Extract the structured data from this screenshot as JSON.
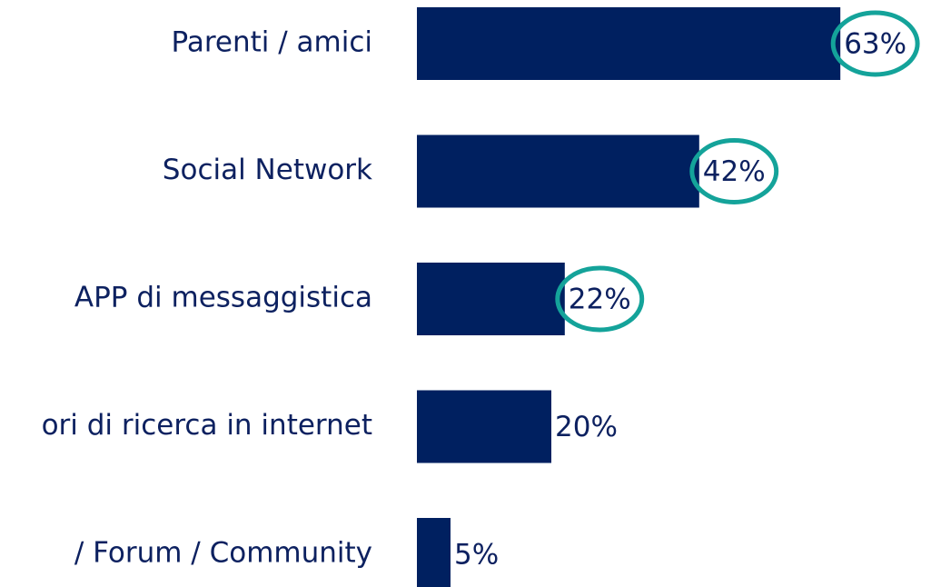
{
  "chart_data": {
    "type": "bar",
    "orientation": "horizontal",
    "categories": [
      "Parenti / amici",
      "Social Network",
      "APP di messaggistica",
      "ori di ricerca in internet",
      "/ Forum / Community"
    ],
    "values": [
      63,
      42,
      22,
      20,
      5
    ],
    "value_labels": [
      "63%",
      "42%",
      "22%",
      "20%",
      "5%"
    ],
    "color": "#002060",
    "highlight": [
      true,
      true,
      true,
      false,
      false
    ],
    "highlight_color": "#14a39a",
    "xlim": [
      0,
      70
    ]
  }
}
